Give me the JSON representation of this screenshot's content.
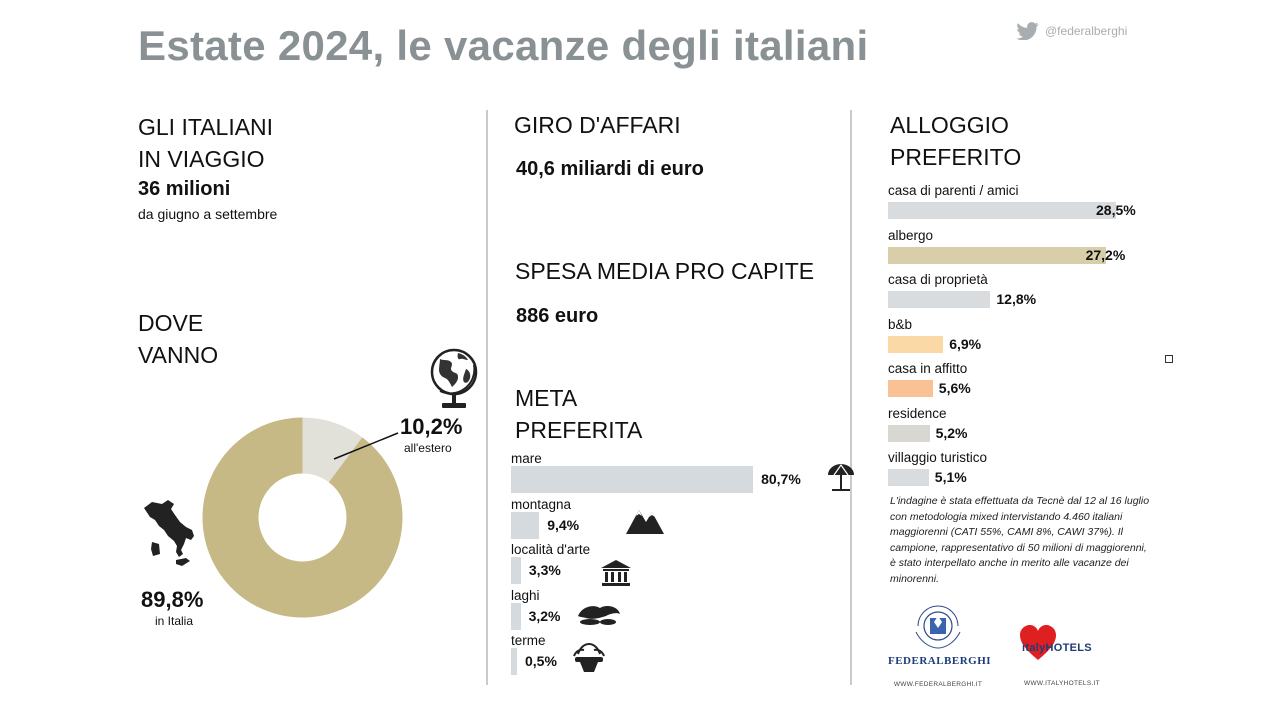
{
  "title": "Estate 2024, le vacanze degli italiani",
  "social_handle": "@federalberghi",
  "travelers": {
    "heading_line1": "GLI ITALIANI",
    "heading_line2": "IN VIAGGIO",
    "value": "36 milioni",
    "period": "da giugno a settembre"
  },
  "dove_vanno": {
    "heading_line1": "DOVE",
    "heading_line2": "VANNO",
    "abroad_value": "10,2%",
    "abroad_label": "all'estero",
    "italy_value": "89,8%",
    "italy_label": "in Italia"
  },
  "turnover": {
    "heading": "GIRO D'AFFARI",
    "value": "40,6 miliardi di euro"
  },
  "spend": {
    "heading": "SPESA MEDIA PRO CAPITE",
    "value": "886 euro"
  },
  "meta": {
    "heading_line1": "META",
    "heading_line2": "PREFERITA"
  },
  "alloggio": {
    "heading_line1": "ALLOGGIO",
    "heading_line2": "PREFERITO"
  },
  "note": "L'indagine è stata effettuata da Tecnè dal 12 al 16 luglio con metodologia mixed intervistando 4.460 italiani maggiorenni (CATI 55%, CAMI 8%, CAWI 37%). Il campione, rappresentativo di 50 milioni di maggiorenni, è stato interpellato anche in merito alle vacanze dei minorenni.",
  "logos": {
    "federalberghi_name": "FEDERALBERGHI",
    "federalberghi_url": "WWW.FEDERALBERGHI.IT",
    "italyhotels_name": "italyHOTELS",
    "italyhotels_url": "WWW.ITALYHOTELS.IT"
  },
  "icons": {
    "globe": "globe-icon",
    "italy": "italy-map-icon",
    "mare": "beach-umbrella-icon",
    "montagna": "mountain-icon",
    "arte": "temple-icon",
    "laghi": "lake-icon",
    "terme": "fountain-icon",
    "twitter": "twitter-bird-icon"
  },
  "chart_data": [
    {
      "type": "pie",
      "variant": "donut",
      "categories": [
        "all'estero",
        "in Italia"
      ],
      "values": [
        10.2,
        89.8
      ],
      "colors": [
        "#e1e0d9",
        "#c6b985"
      ]
    },
    {
      "type": "bar",
      "orientation": "horizontal",
      "categories": [
        "mare",
        "montagna",
        "località d'arte",
        "laghi",
        "terme"
      ],
      "values": [
        80.7,
        9.4,
        3.3,
        3.2,
        0.5
      ],
      "value_labels": [
        "80,7%",
        "9,4%",
        "3,3%",
        "3,2%",
        "0,5%"
      ],
      "colors": [
        "#d5dade",
        "#d5dade",
        "#d5dade",
        "#d5dade",
        "#d5dade"
      ]
    },
    {
      "type": "bar",
      "orientation": "horizontal",
      "categories": [
        "casa di parenti / amici",
        "albergo",
        "casa di proprietà",
        "b&b",
        "casa in affitto",
        "residence",
        "villaggio turistico"
      ],
      "values": [
        28.5,
        27.2,
        12.8,
        6.9,
        5.6,
        5.2,
        5.1
      ],
      "value_labels": [
        "28,5%",
        "27,2%",
        "12,8%",
        "6,9%",
        "5,6%",
        "5,2%",
        "5,1%"
      ],
      "colors": [
        "#d9dcdf",
        "#d8ceaa",
        "#d9dcdf",
        "#fad9a6",
        "#f9c194",
        "#d9d7d2",
        "#d9dcdf"
      ]
    }
  ]
}
